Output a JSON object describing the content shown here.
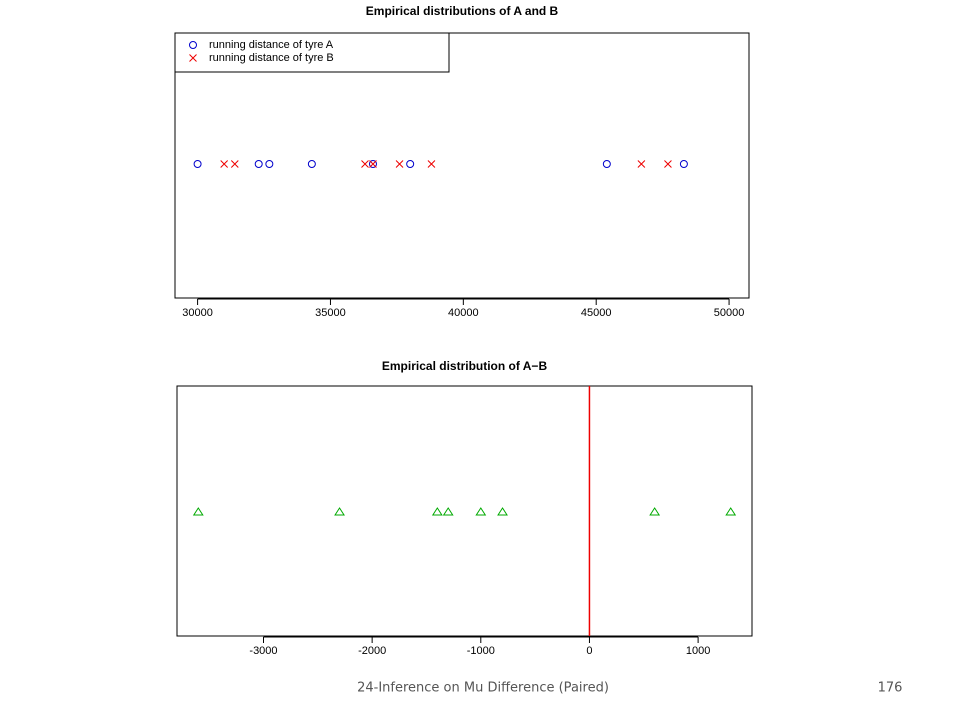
{
  "chart_data": [
    {
      "type": "strip",
      "title": "Empirical distributions of A and B",
      "xlim": [
        29150,
        50750
      ],
      "xticks": [
        30000,
        35000,
        40000,
        45000,
        50000
      ],
      "legend": "top-left",
      "series": [
        {
          "name": "running distance of tyre A",
          "color": "#0000cc",
          "marker": "circle",
          "values": [
            30000,
            32300,
            32700,
            34300,
            36600,
            38000,
            45400,
            48300
          ]
        },
        {
          "name": "running distance of tyre B",
          "color": "#ee0000",
          "marker": "cross",
          "values": [
            31000,
            31400,
            36300,
            36600,
            37600,
            38800,
            46700,
            47700
          ]
        }
      ]
    },
    {
      "type": "strip",
      "title": "Empirical distribution of A−B",
      "xlim": [
        -3796,
        1496
      ],
      "xticks": [
        -3000,
        -2000,
        -1000,
        0,
        1000
      ],
      "vline": 0,
      "vline_color": "#ee0000",
      "series": [
        {
          "color": "#00aa00",
          "marker": "triangle",
          "values": [
            -3600,
            -2300,
            -1400,
            -1300,
            -1000,
            -800,
            600,
            1300
          ]
        }
      ]
    }
  ],
  "footer": {
    "text": "24-Inference on Mu Difference (Paired)",
    "page": "176"
  }
}
